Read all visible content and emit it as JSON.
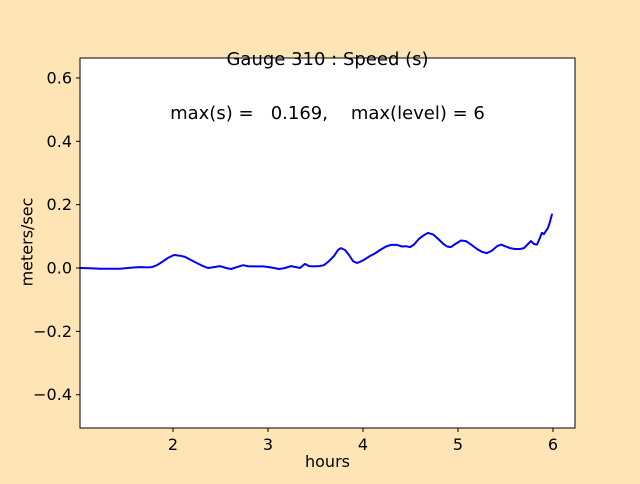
{
  "window": {
    "background_color": "#FFE4B5"
  },
  "title": {
    "line1": "Gauge 310 : Speed (s)",
    "line2": "max(s) =   0.169,    max(level) = 6"
  },
  "colors": {
    "figure_bg": "#FFE4B5",
    "plot_bg": "#FFFFFF",
    "line": "#0000FF",
    "spine": "#000000",
    "text": "#000000"
  },
  "chart_data": {
    "type": "line",
    "title": "Gauge 310 : Speed (s)",
    "subtitle": "max(s) =   0.169,    max(level) = 6",
    "xlabel": "hours",
    "ylabel": "meters/sec",
    "xlim": [
      1.021,
      6.232
    ],
    "ylim": [
      -0.505,
      0.663
    ],
    "x_ticks": [
      2,
      3,
      4,
      5,
      6
    ],
    "y_ticks": [
      -0.4,
      -0.2,
      0.0,
      0.2,
      0.4,
      0.6
    ],
    "grid": false,
    "legend_position": null,
    "max_s": 0.169,
    "max_level": 6,
    "series": [
      {
        "name": "speed",
        "color": "#0000FF",
        "x": [
          1.021,
          1.126,
          1.232,
          1.337,
          1.442,
          1.526,
          1.6,
          1.663,
          1.726,
          1.779,
          1.832,
          1.884,
          1.947,
          2.011,
          2.074,
          2.126,
          2.179,
          2.242,
          2.316,
          2.368,
          2.432,
          2.495,
          2.558,
          2.611,
          2.674,
          2.737,
          2.8,
          2.874,
          2.947,
          3.011,
          3.063,
          3.116,
          3.179,
          3.242,
          3.295,
          3.337,
          3.389,
          3.432,
          3.484,
          3.537,
          3.589,
          3.642,
          3.695,
          3.737,
          3.768,
          3.811,
          3.853,
          3.895,
          3.937,
          3.979,
          4.021,
          4.074,
          4.126,
          4.179,
          4.242,
          4.295,
          4.358,
          4.411,
          4.453,
          4.495,
          4.537,
          4.589,
          4.642,
          4.684,
          4.737,
          4.789,
          4.842,
          4.884,
          4.926,
          4.979,
          5.032,
          5.084,
          5.137,
          5.2,
          5.253,
          5.305,
          5.358,
          5.411,
          5.453,
          5.495,
          5.547,
          5.6,
          5.653,
          5.695,
          5.737,
          5.768,
          5.8,
          5.832,
          5.863,
          5.884,
          5.905,
          5.926,
          5.947,
          5.968,
          5.989
        ],
        "y": [
          0.0,
          -0.001,
          -0.002,
          -0.002,
          -0.002,
          0.0,
          0.002,
          0.003,
          0.002,
          0.003,
          0.009,
          0.019,
          0.032,
          0.041,
          0.039,
          0.035,
          0.027,
          0.017,
          0.006,
          0.0,
          0.003,
          0.006,
          0.0,
          -0.003,
          0.003,
          0.009,
          0.005,
          0.005,
          0.005,
          0.003,
          0.0,
          -0.003,
          0.0,
          0.006,
          0.003,
          0.0,
          0.013,
          0.006,
          0.005,
          0.006,
          0.009,
          0.022,
          0.038,
          0.057,
          0.063,
          0.057,
          0.041,
          0.022,
          0.016,
          0.021,
          0.028,
          0.038,
          0.046,
          0.057,
          0.068,
          0.073,
          0.073,
          0.068,
          0.069,
          0.066,
          0.074,
          0.092,
          0.104,
          0.111,
          0.106,
          0.093,
          0.077,
          0.068,
          0.066,
          0.077,
          0.087,
          0.085,
          0.074,
          0.06,
          0.051,
          0.047,
          0.055,
          0.069,
          0.074,
          0.069,
          0.063,
          0.06,
          0.06,
          0.063,
          0.076,
          0.085,
          0.076,
          0.074,
          0.095,
          0.111,
          0.107,
          0.117,
          0.126,
          0.145,
          0.169
        ]
      }
    ]
  }
}
